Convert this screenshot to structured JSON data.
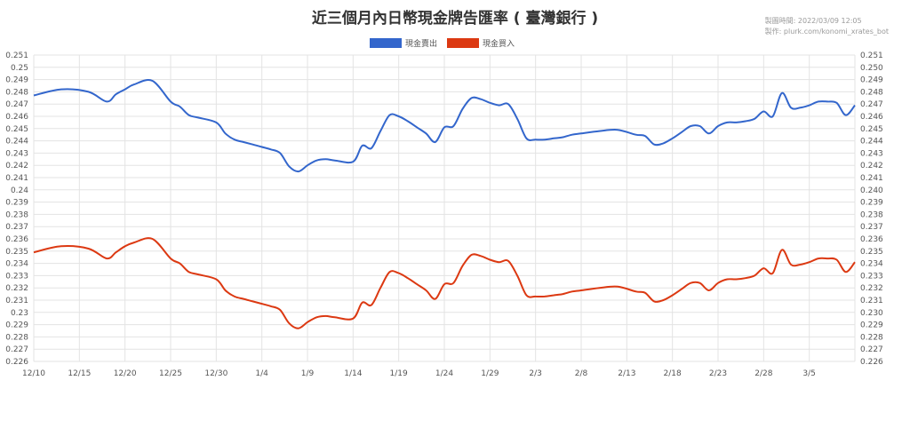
{
  "page": {
    "title": "近三個月內日幣現金牌告匯率 ( 臺灣銀行 )",
    "meta_time": "製圖時間: 2022/03/09 12:05",
    "meta_maker": "製作: plurk.com/konomi_xrates_bot"
  },
  "chart_data": {
    "type": "line",
    "xlabel": "",
    "ylabel": "",
    "x_tick_labels": [
      "12/10",
      "12/15",
      "12/20",
      "12/25",
      "12/30",
      "1/4",
      "1/9",
      "1/14",
      "1/19",
      "1/24",
      "1/29",
      "2/3",
      "2/8",
      "2/13",
      "2/18",
      "2/23",
      "2/28",
      "3/5"
    ],
    "x_range_days": [
      0,
      90
    ],
    "ylim": [
      0.226,
      0.251
    ],
    "y_step": 0.001,
    "y_tick_labels": [
      "0.251",
      "0.25",
      "0.249",
      "0.248",
      "0.247",
      "0.246",
      "0.245",
      "0.244",
      "0.243",
      "0.242",
      "0.241",
      "0.24",
      "0.239",
      "0.238",
      "0.237",
      "0.236",
      "0.235",
      "0.234",
      "0.233",
      "0.232",
      "0.231",
      "0.23",
      "0.229",
      "0.228",
      "0.227",
      "0.226"
    ],
    "y_tick_labels_right": [
      "0.251",
      "0.250",
      "0.249",
      "0.248",
      "0.247",
      "0.246",
      "0.245",
      "0.244",
      "0.243",
      "0.242",
      "0.241",
      "0.240",
      "0.239",
      "0.238",
      "0.237",
      "0.236",
      "0.235",
      "0.234",
      "0.233",
      "0.232",
      "0.231",
      "0.230",
      "0.229",
      "0.228",
      "0.227",
      "0.226"
    ],
    "grid": true,
    "legend_position": "top-center",
    "series": [
      {
        "name": "現金賣出",
        "color": "#3366cc",
        "x": [
          0,
          3,
          6,
          8,
          9,
          10,
          11,
          13,
          15,
          16,
          17,
          18,
          20,
          21,
          22,
          23,
          24,
          25,
          26,
          27,
          28,
          29,
          30,
          31,
          32,
          33,
          35,
          36,
          37,
          38,
          39,
          40,
          41,
          42,
          43,
          44,
          45,
          46,
          47,
          48,
          49,
          50,
          51,
          52,
          53,
          54,
          55,
          56,
          57,
          58,
          59,
          60,
          62,
          64,
          66,
          67,
          68,
          69,
          70,
          71,
          72,
          73,
          74,
          75,
          76,
          77,
          78,
          79,
          80,
          81,
          82,
          83,
          84,
          85,
          86,
          87,
          88,
          89,
          90
        ],
        "y": [
          0.2477,
          0.2482,
          0.248,
          0.2472,
          0.2478,
          0.2482,
          0.2486,
          0.2489,
          0.2472,
          0.2468,
          0.2461,
          0.2459,
          0.2455,
          0.2446,
          0.2441,
          0.2439,
          0.2437,
          0.2435,
          0.2433,
          0.243,
          0.2419,
          0.2415,
          0.242,
          0.2424,
          0.2425,
          0.2424,
          0.2423,
          0.2436,
          0.2434,
          0.2448,
          0.2461,
          0.246,
          0.2456,
          0.2451,
          0.2446,
          0.2439,
          0.2451,
          0.2452,
          0.2466,
          0.2475,
          0.2474,
          0.2471,
          0.2469,
          0.247,
          0.2458,
          0.2442,
          0.2441,
          0.2441,
          0.2442,
          0.2443,
          0.2445,
          0.2446,
          0.2448,
          0.2449,
          0.2445,
          0.2444,
          0.2437,
          0.2438,
          0.2442,
          0.2447,
          0.2452,
          0.2452,
          0.2446,
          0.2452,
          0.2455,
          0.2455,
          0.2456,
          0.2458,
          0.2464,
          0.246,
          0.2479,
          0.2467,
          0.2467,
          0.2469,
          0.2472,
          0.2472,
          0.2471,
          0.2461,
          0.2469
        ]
      },
      {
        "name": "現金買入",
        "color": "#dc3912",
        "x": [
          0,
          3,
          6,
          8,
          9,
          10,
          11,
          13,
          15,
          16,
          17,
          18,
          20,
          21,
          22,
          23,
          24,
          25,
          26,
          27,
          28,
          29,
          30,
          31,
          32,
          33,
          35,
          36,
          37,
          38,
          39,
          40,
          41,
          42,
          43,
          44,
          45,
          46,
          47,
          48,
          49,
          50,
          51,
          52,
          53,
          54,
          55,
          56,
          57,
          58,
          59,
          60,
          62,
          64,
          66,
          67,
          68,
          69,
          70,
          71,
          72,
          73,
          74,
          75,
          76,
          77,
          78,
          79,
          80,
          81,
          82,
          83,
          84,
          85,
          86,
          87,
          88,
          89,
          90
        ],
        "y": [
          0.2349,
          0.2354,
          0.2352,
          0.2344,
          0.2349,
          0.2354,
          0.2357,
          0.236,
          0.2344,
          0.234,
          0.2333,
          0.2331,
          0.2327,
          0.2318,
          0.2313,
          0.2311,
          0.2309,
          0.2307,
          0.2305,
          0.2302,
          0.2291,
          0.2287,
          0.2292,
          0.2296,
          0.2297,
          0.2296,
          0.2295,
          0.2308,
          0.2306,
          0.232,
          0.2333,
          0.2332,
          0.2328,
          0.2323,
          0.2318,
          0.2311,
          0.2323,
          0.2324,
          0.2338,
          0.2347,
          0.2346,
          0.2343,
          0.2341,
          0.2342,
          0.233,
          0.2314,
          0.2313,
          0.2313,
          0.2314,
          0.2315,
          0.2317,
          0.2318,
          0.232,
          0.2321,
          0.2317,
          0.2316,
          0.2309,
          0.231,
          0.2314,
          0.2319,
          0.2324,
          0.2324,
          0.2318,
          0.2324,
          0.2327,
          0.2327,
          0.2328,
          0.233,
          0.2336,
          0.2332,
          0.2351,
          0.2339,
          0.2339,
          0.2341,
          0.2344,
          0.2344,
          0.2343,
          0.2333,
          0.2341
        ]
      }
    ]
  }
}
